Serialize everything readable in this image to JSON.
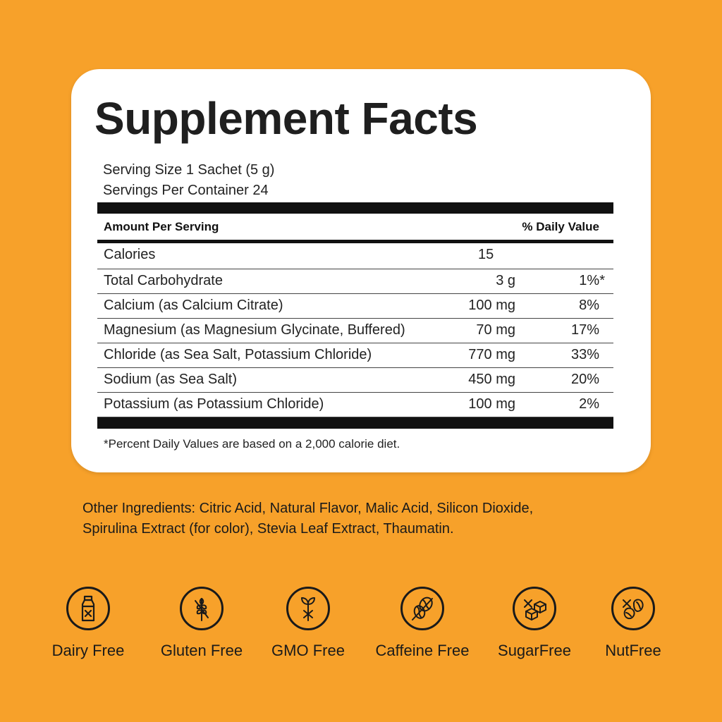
{
  "facts": {
    "title": "Supplement Facts",
    "serving_size": "Serving Size 1 Sachet (5 g)",
    "servings_per_container": "Servings Per Container 24",
    "header_amount": "Amount Per Serving",
    "header_dv": "% Daily Value",
    "rows": [
      {
        "name": "Calories",
        "amount": "15",
        "dv": ""
      },
      {
        "name": "Total Carbohydrate",
        "amount": "3 g",
        "dv": "1%*"
      },
      {
        "name": "Calcium (as Calcium Citrate)",
        "amount": "100 mg",
        "dv": "8%"
      },
      {
        "name": "Magnesium (as Magnesium Glycinate, Buffered)",
        "amount": "70 mg",
        "dv": "17%"
      },
      {
        "name": "Chloride (as Sea Salt, Potassium Chloride)",
        "amount": "770 mg",
        "dv": "33%"
      },
      {
        "name": "Sodium (as Sea Salt)",
        "amount": "450 mg",
        "dv": "20%"
      },
      {
        "name": "Potassium (as Potassium Chloride)",
        "amount": "100 mg",
        "dv": "2%"
      }
    ],
    "footnote": "*Percent Daily Values are based on a 2,000 calorie diet."
  },
  "ingredients": {
    "line1": "Other Ingredients: Citric Acid, Natural Flavor, Malic Acid, Silicon Dioxide,",
    "line2": "Spirulina Extract (for color), Stevia Leaf Extract, Thaumatin."
  },
  "badges": [
    {
      "label": "Dairy Free",
      "icon": "milk-bottle-icon"
    },
    {
      "label": "Gluten Free",
      "icon": "wheat-icon"
    },
    {
      "label": "GMO Free",
      "icon": "plant-icon"
    },
    {
      "label": "Caffeine Free",
      "icon": "coffee-bean-icon"
    },
    {
      "label": "SugarFree",
      "icon": "sugar-cube-icon"
    },
    {
      "label": "NutFree",
      "icon": "nut-icon"
    }
  ],
  "colors": {
    "background": "#F7A12A",
    "card": "#FFFFFF",
    "text": "#1A1A1A"
  }
}
